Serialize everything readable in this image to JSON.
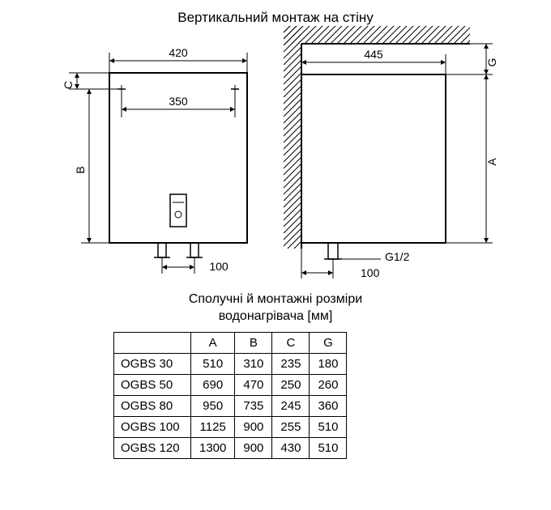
{
  "title": "Вертикальний монтаж на стіну",
  "subtitle_line1": "Сполучні й монтажні розміри",
  "subtitle_line2": "водонагрівача [мм]",
  "front_view": {
    "width_label": "420",
    "mount_spacing_label": "350",
    "pipe_spacing_label": "100",
    "dim_B": "B",
    "dim_C": "C"
  },
  "side_view": {
    "depth_label": "445",
    "dim_A": "A",
    "dim_G": "G",
    "pipe_label": "G1/2",
    "offset_label": "100"
  },
  "table": {
    "headers": [
      "",
      "A",
      "B",
      "C",
      "G"
    ],
    "rows": [
      [
        "OGBS 30",
        "510",
        "310",
        "235",
        "180"
      ],
      [
        "OGBS 50",
        "690",
        "470",
        "250",
        "260"
      ],
      [
        "OGBS 80",
        "950",
        "735",
        "245",
        "360"
      ],
      [
        "OGBS 100",
        "1125",
        "900",
        "255",
        "510"
      ],
      [
        "OGBS 120",
        "1300",
        "900",
        "430",
        "510"
      ]
    ]
  },
  "style": {
    "stroke": "#000000",
    "thick": 2,
    "thin": 1,
    "font": "Arial",
    "bg": "#ffffff"
  }
}
